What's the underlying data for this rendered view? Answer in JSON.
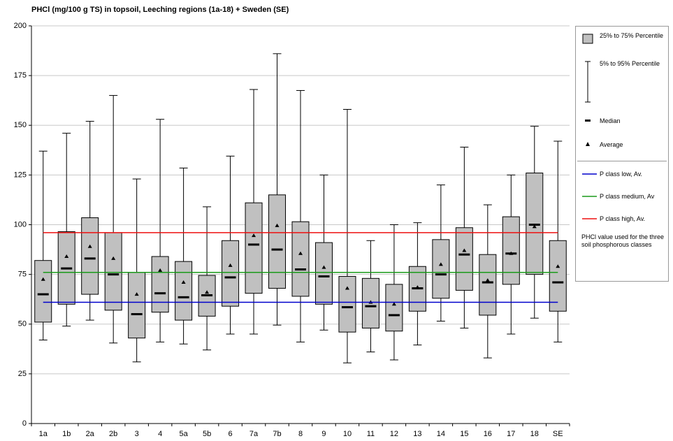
{
  "chart_data": {
    "type": "box",
    "title": "PHCl (mg/100 g TS) in topsoil, Leeching regions (1a-18) + Sweden (SE)",
    "categories": [
      "1a",
      "1b",
      "2a",
      "2b",
      "3",
      "4",
      "5a",
      "5b",
      "6",
      "7a",
      "7b",
      "8",
      "9",
      "10",
      "11",
      "12",
      "13",
      "14",
      "15",
      "16",
      "17",
      "18",
      "SE"
    ],
    "p5": [
      42,
      49,
      52,
      40.5,
      31,
      41,
      40,
      37,
      45,
      45,
      49.5,
      41,
      47,
      30.5,
      36,
      32,
      39.5,
      51.5,
      48,
      33,
      45,
      53,
      41
    ],
    "q1": [
      51,
      60,
      65,
      57,
      43,
      56,
      52,
      54,
      59,
      65.5,
      68,
      64,
      60,
      46,
      48,
      46.5,
      56.5,
      63,
      67,
      54.5,
      70,
      75,
      56.5
    ],
    "median": [
      65,
      78,
      83,
      75,
      55,
      65.5,
      63.5,
      64.5,
      73.5,
      90,
      87.5,
      77.5,
      74,
      58.5,
      59,
      54.5,
      68,
      75,
      85,
      71,
      85.5,
      100,
      71
    ],
    "q3": [
      82,
      96.5,
      103.5,
      96,
      76,
      84,
      81.5,
      74.5,
      92,
      111,
      115,
      101.5,
      91,
      74,
      73,
      70,
      79,
      92.5,
      98.5,
      85,
      104,
      126,
      92
    ],
    "p95": [
      137,
      146,
      152,
      165,
      123,
      153,
      128.5,
      109,
      134.5,
      168,
      186,
      167.5,
      125,
      158,
      92,
      100,
      101,
      120,
      139,
      110,
      125,
      149.5,
      142
    ],
    "average": [
      72.5,
      84,
      89,
      83,
      65,
      77,
      71,
      66,
      79.5,
      94.5,
      99.5,
      85.5,
      78.5,
      68,
      61,
      60,
      68.5,
      80,
      87,
      72,
      85.5,
      99,
      79
    ],
    "box_color": "#c0c0c0",
    "reference_lines": [
      {
        "name": "P class low, Av.",
        "color": "#0000cc",
        "value": 61
      },
      {
        "name": "P class medium, Av",
        "color": "#1a9a1a",
        "value": 76
      },
      {
        "name": "P class high, Av.",
        "color": "#ee1111",
        "value": 96
      }
    ],
    "legend_labels": {
      "box": "25% to 75% Percentile",
      "whisker": "5% to 95% Percentile",
      "median": "Median",
      "average": "Average",
      "note": "PHCl  value used for the three soil phosphorous classes"
    },
    "ylim": [
      0,
      200
    ],
    "yticks": [
      0,
      25,
      50,
      75,
      100,
      125,
      150,
      175,
      200
    ],
    "grid": true
  }
}
